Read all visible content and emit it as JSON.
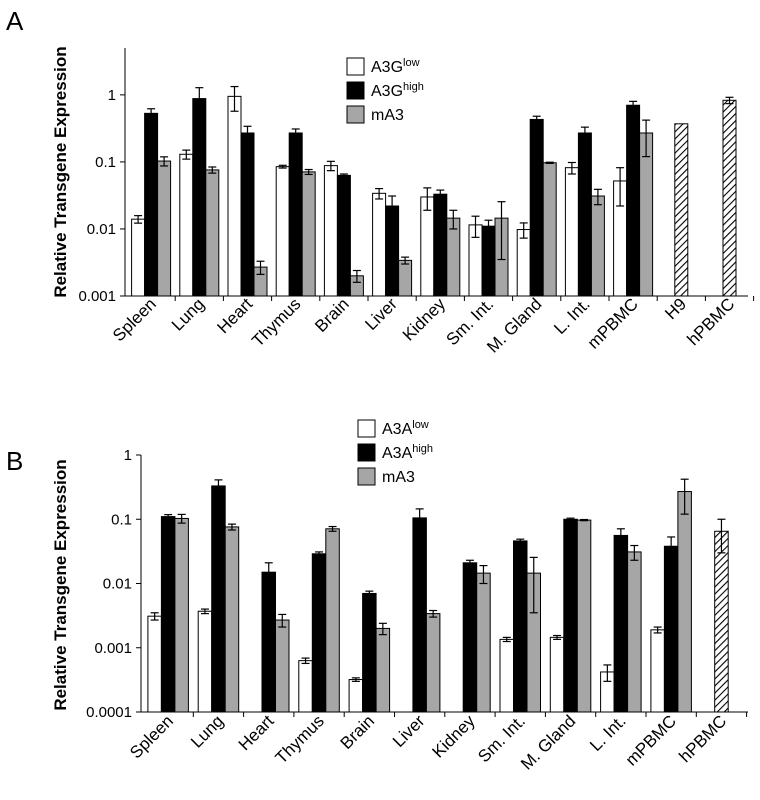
{
  "colors": {
    "low": "#ffffff",
    "high": "#000000",
    "mA3": "#a6a6a6",
    "hatch": "#000000"
  },
  "chart_data": [
    {
      "panel": "A",
      "type": "bar",
      "ylabel": "Relative Transgene Expression",
      "yscale": "log",
      "ylim": [
        0.001,
        5
      ],
      "yticks": [
        "1",
        "0.1",
        "0.01",
        "0.001"
      ],
      "ytick_values": [
        1,
        0.1,
        0.01,
        0.001
      ],
      "categories": [
        "Spleen",
        "Lung",
        "Heart",
        "Thymus",
        "Brain",
        "Liver",
        "Kidney",
        "Sm. Int.",
        "M. Gland",
        "L. Int.",
        "mPBMC",
        "H9",
        "hPBMC"
      ],
      "legend": [
        {
          "base": "A3G",
          "sup": "low",
          "key": "low"
        },
        {
          "base": "A3G",
          "sup": "high",
          "key": "high"
        },
        {
          "base": "mA3",
          "sup": "",
          "key": "mA3"
        }
      ],
      "legend_position": "top-center",
      "series": [
        {
          "key": "low",
          "name": "A3Glow",
          "values": [
            0.014,
            0.13,
            0.95,
            0.085,
            0.088,
            0.034,
            0.03,
            0.0115,
            0.0098,
            0.082,
            0.052,
            null,
            null
          ],
          "err": [
            0.0018,
            0.02,
            0.38,
            0.004,
            0.014,
            0.006,
            0.011,
            0.004,
            0.0025,
            0.016,
            0.03,
            null,
            null
          ]
        },
        {
          "key": "high",
          "name": "A3Ghigh",
          "values": [
            0.53,
            0.88,
            0.27,
            0.27,
            0.063,
            0.022,
            0.033,
            0.011,
            0.43,
            0.27,
            0.7,
            null,
            null
          ],
          "err": [
            0.09,
            0.4,
            0.07,
            0.04,
            0.003,
            0.009,
            0.005,
            0.0025,
            0.05,
            0.06,
            0.1,
            null,
            null
          ]
        },
        {
          "key": "mA3",
          "name": "mA3",
          "values": [
            0.103,
            0.076,
            0.0027,
            0.071,
            0.002,
            0.0034,
            0.0145,
            0.0145,
            0.097,
            0.031,
            0.27,
            null,
            null
          ],
          "err": [
            0.016,
            0.008,
            0.0006,
            0.006,
            0.0004,
            0.0004,
            0.0045,
            0.011,
            0.002,
            0.008,
            0.15,
            null,
            null
          ]
        },
        {
          "key": "hatch",
          "name": "hatched",
          "values": [
            null,
            null,
            null,
            null,
            null,
            null,
            null,
            null,
            null,
            null,
            null,
            0.37,
            0.83
          ],
          "err": [
            null,
            null,
            null,
            null,
            null,
            null,
            null,
            null,
            null,
            null,
            null,
            null,
            0.09
          ]
        }
      ]
    },
    {
      "panel": "B",
      "type": "bar",
      "ylabel": "Relative Transgene Expression",
      "yscale": "log",
      "ylim": [
        0.0001,
        1
      ],
      "yticks": [
        "1",
        "0.1",
        "0.01",
        "0.001",
        "0.0001"
      ],
      "ytick_values": [
        1,
        0.1,
        0.01,
        0.001,
        0.0001
      ],
      "categories": [
        "Spleen",
        "Lung",
        "Heart",
        "Thymus",
        "Brain",
        "Liver",
        "Kidney",
        "Sm. Int.",
        "M. Gland",
        "L. Int.",
        "mPBMC",
        "hPBMC"
      ],
      "legend": [
        {
          "base": "A3A",
          "sup": "low",
          "key": "low"
        },
        {
          "base": "A3A",
          "sup": "high",
          "key": "high"
        },
        {
          "base": "mA3",
          "sup": "",
          "key": "mA3"
        }
      ],
      "legend_position": "top-center",
      "series": [
        {
          "key": "low",
          "name": "A3Alow",
          "values": [
            0.0031,
            0.0037,
            null,
            0.00063,
            0.00032,
            null,
            null,
            0.00135,
            0.00145,
            0.00042,
            0.0019,
            null
          ],
          "err": [
            0.0004,
            0.0003,
            null,
            6e-05,
            2e-05,
            null,
            null,
            0.0001,
            0.0001,
            0.00012,
            0.0002,
            null
          ]
        },
        {
          "key": "high",
          "name": "A3Ahigh",
          "values": [
            0.11,
            0.33,
            0.015,
            0.029,
            0.007,
            0.105,
            0.021,
            0.046,
            0.1,
            0.056,
            0.038,
            null
          ],
          "err": [
            0.008,
            0.08,
            0.006,
            0.002,
            0.0006,
            0.04,
            0.002,
            0.003,
            0.004,
            0.015,
            0.015,
            null
          ]
        },
        {
          "key": "mA3",
          "name": "mA3",
          "values": [
            0.103,
            0.076,
            0.0027,
            0.071,
            0.002,
            0.0034,
            0.0145,
            0.0145,
            0.097,
            0.031,
            0.27,
            null
          ],
          "err": [
            0.016,
            0.008,
            0.0006,
            0.006,
            0.0004,
            0.0004,
            0.0045,
            0.011,
            0.002,
            0.008,
            0.15,
            null
          ]
        },
        {
          "key": "hatch",
          "name": "hatched",
          "values": [
            null,
            null,
            null,
            null,
            null,
            null,
            null,
            null,
            null,
            null,
            null,
            0.065
          ],
          "err": [
            null,
            null,
            null,
            null,
            null,
            null,
            null,
            null,
            null,
            null,
            null,
            0.035
          ]
        }
      ]
    }
  ]
}
